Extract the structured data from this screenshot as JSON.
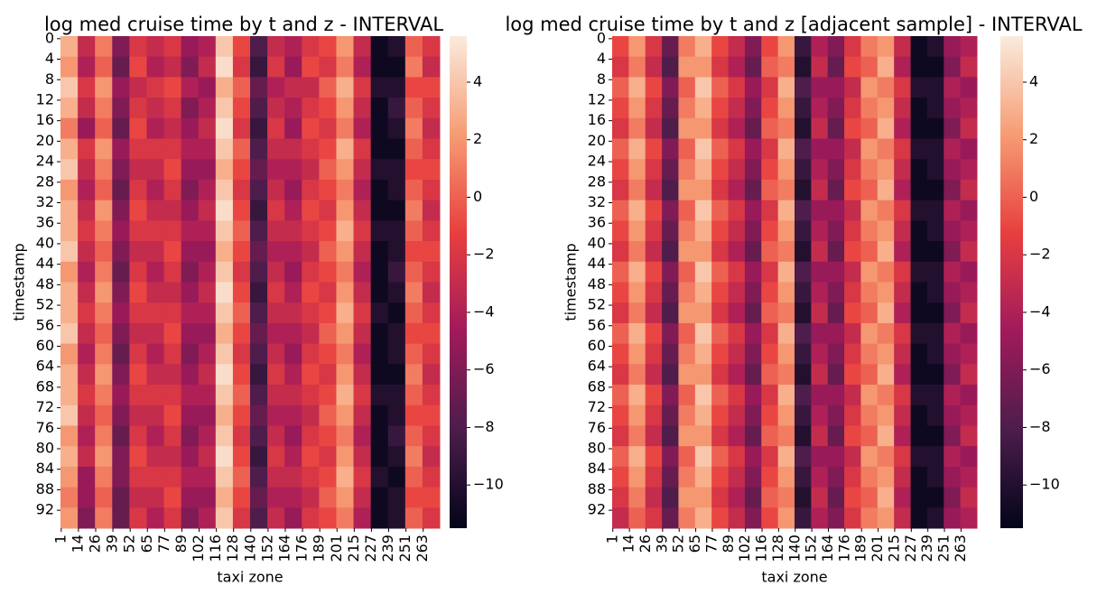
{
  "chart_data": [
    {
      "type": "heatmap",
      "title": "log med cruise time by t and z - INTERVAL",
      "xlabel": "taxi zone",
      "ylabel": "timestamp",
      "x_categories": [
        "1",
        "14",
        "26",
        "39",
        "52",
        "65",
        "77",
        "89",
        "102",
        "116",
        "128",
        "140",
        "152",
        "164",
        "176",
        "189",
        "201",
        "215",
        "227",
        "239",
        "251",
        "263"
      ],
      "y_categories": [
        "0",
        "4",
        "8",
        "12",
        "16",
        "20",
        "24",
        "28",
        "32",
        "36",
        "40",
        "44",
        "48",
        "52",
        "56",
        "60",
        "64",
        "68",
        "72",
        "76",
        "80",
        "84",
        "88",
        "92"
      ],
      "colors": [
        "#03051a",
        "#4c1d4b",
        "#a11a5b",
        "#e83f3f",
        "#f69c73",
        "#faebdd"
      ],
      "clim": [
        -11.5,
        5.6
      ],
      "cticks": [
        {
          "value": 4,
          "label": "4"
        },
        {
          "value": 2,
          "label": "2"
        },
        {
          "value": 0,
          "label": "0"
        },
        {
          "value": -2,
          "label": "−2"
        },
        {
          "value": -4,
          "label": "−4"
        },
        {
          "value": -6,
          "label": "−6"
        },
        {
          "value": -8,
          "label": "−8"
        },
        {
          "value": -10,
          "label": "−10"
        }
      ],
      "values": [
        [
          3,
          -3,
          1,
          -6,
          -2,
          -3,
          -2,
          -5,
          -4,
          4,
          -1,
          -8,
          -3,
          -4,
          -2,
          -1,
          2,
          -3,
          -11,
          -10,
          0,
          -2
        ],
        [
          2,
          -4,
          0,
          -7,
          -1,
          -4,
          -3,
          -6,
          -3,
          5,
          -2,
          -9,
          -2,
          -5,
          -1,
          -2,
          1,
          -4,
          -11,
          -11,
          1,
          -3
        ],
        [
          4,
          -2,
          2,
          -5,
          -3,
          -2,
          -1,
          -4,
          -5,
          3,
          0,
          -7,
          -4,
          -3,
          -3,
          0,
          3,
          -2,
          -10,
          -10,
          -1,
          -1
        ],
        [
          3,
          -3,
          1,
          -6,
          -2,
          -3,
          -2,
          -6,
          -4,
          4,
          -1,
          -8,
          -3,
          -4,
          -2,
          -1,
          2,
          -3,
          -11,
          -9,
          0,
          -2
        ],
        [
          1,
          -5,
          0,
          -7,
          -1,
          -4,
          -3,
          -5,
          -3,
          5,
          -2,
          -9,
          -2,
          -5,
          -1,
          -2,
          1,
          -4,
          -11,
          -10,
          1,
          -3
        ],
        [
          3,
          -2,
          2,
          -5,
          -2,
          -2,
          -2,
          -4,
          -4,
          4,
          0,
          -8,
          -3,
          -3,
          -2,
          -1,
          3,
          -2,
          -11,
          -11,
          0,
          -2
        ],
        [
          4,
          -3,
          1,
          -6,
          -3,
          -3,
          -1,
          -5,
          -5,
          3,
          -1,
          -7,
          -4,
          -4,
          -3,
          0,
          2,
          -3,
          -10,
          -10,
          -1,
          -1
        ],
        [
          2,
          -4,
          0,
          -7,
          -2,
          -4,
          -2,
          -6,
          -4,
          4,
          -2,
          -8,
          -3,
          -5,
          -2,
          -1,
          1,
          -4,
          -11,
          -10,
          0,
          -2
        ],
        [
          3,
          -3,
          2,
          -6,
          -1,
          -3,
          -3,
          -5,
          -3,
          5,
          -1,
          -9,
          -2,
          -4,
          -1,
          -2,
          2,
          -3,
          -11,
          -11,
          1,
          -3
        ],
        [
          3,
          -2,
          1,
          -5,
          -2,
          -2,
          -2,
          -4,
          -4,
          4,
          0,
          -8,
          -3,
          -3,
          -2,
          -1,
          3,
          -2,
          -10,
          -10,
          0,
          -2
        ],
        [
          4,
          -3,
          0,
          -6,
          -3,
          -3,
          -1,
          -5,
          -5,
          3,
          -1,
          -7,
          -4,
          -4,
          -3,
          0,
          2,
          -3,
          -11,
          -10,
          -1,
          -1
        ],
        [
          2,
          -4,
          1,
          -7,
          -2,
          -4,
          -2,
          -6,
          -4,
          4,
          -2,
          -8,
          -3,
          -5,
          -2,
          -1,
          1,
          -4,
          -11,
          -9,
          0,
          -2
        ],
        [
          3,
          -3,
          2,
          -6,
          -1,
          -3,
          -3,
          -5,
          -3,
          5,
          -1,
          -9,
          -2,
          -4,
          -1,
          -2,
          2,
          -3,
          -11,
          -10,
          1,
          -3
        ],
        [
          3,
          -2,
          1,
          -5,
          -2,
          -2,
          -2,
          -4,
          -4,
          4,
          0,
          -8,
          -3,
          -3,
          -2,
          -1,
          3,
          -2,
          -10,
          -11,
          0,
          -2
        ],
        [
          4,
          -3,
          0,
          -6,
          -3,
          -3,
          -1,
          -5,
          -5,
          3,
          -1,
          -7,
          -4,
          -4,
          -3,
          0,
          2,
          -3,
          -11,
          -10,
          -1,
          -1
        ],
        [
          2,
          -4,
          1,
          -7,
          -2,
          -4,
          -2,
          -6,
          -4,
          4,
          -2,
          -8,
          -3,
          -5,
          -2,
          -1,
          1,
          -4,
          -11,
          -10,
          0,
          -2
        ],
        [
          3,
          -3,
          2,
          -6,
          -1,
          -3,
          -3,
          -5,
          -3,
          5,
          -1,
          -9,
          -2,
          -4,
          -1,
          -2,
          2,
          -3,
          -11,
          -11,
          1,
          -3
        ],
        [
          3,
          -2,
          1,
          -5,
          -2,
          -2,
          -2,
          -4,
          -4,
          4,
          0,
          -8,
          -3,
          -3,
          -2,
          -1,
          3,
          -2,
          -10,
          -10,
          0,
          -2
        ],
        [
          4,
          -3,
          0,
          -6,
          -3,
          -3,
          -1,
          -5,
          -5,
          3,
          -1,
          -7,
          -4,
          -4,
          -3,
          0,
          2,
          -3,
          -11,
          -10,
          -1,
          -1
        ],
        [
          2,
          -4,
          1,
          -7,
          -2,
          -4,
          -2,
          -6,
          -4,
          4,
          -2,
          -8,
          -3,
          -5,
          -2,
          -1,
          1,
          -4,
          -11,
          -9,
          0,
          -2
        ],
        [
          3,
          -3,
          2,
          -6,
          -1,
          -3,
          -3,
          -5,
          -3,
          5,
          -1,
          -9,
          -2,
          -4,
          -1,
          -2,
          2,
          -3,
          -11,
          -10,
          1,
          -3
        ],
        [
          2,
          -5,
          1,
          -6,
          -2,
          -2,
          -2,
          -4,
          -4,
          4,
          0,
          -8,
          -3,
          -3,
          -2,
          -1,
          3,
          -2,
          -10,
          -11,
          0,
          -2
        ],
        [
          1,
          -5,
          0,
          -7,
          -3,
          -3,
          -1,
          -5,
          -5,
          3,
          -1,
          -7,
          -4,
          -4,
          -3,
          0,
          2,
          -3,
          -11,
          -10,
          -1,
          -1
        ],
        [
          2,
          -6,
          1,
          -7,
          -2,
          -4,
          -2,
          -6,
          -4,
          4,
          -2,
          -8,
          -3,
          -5,
          -2,
          -1,
          1,
          -4,
          -11,
          -10,
          0,
          -2
        ]
      ]
    },
    {
      "type": "heatmap",
      "title": "log med cruise time by t and z [adjacent sample] - INTERVAL",
      "xlabel": "taxi zone",
      "ylabel": "timestamp",
      "x_categories": [
        "1",
        "14",
        "26",
        "39",
        "52",
        "65",
        "77",
        "89",
        "102",
        "116",
        "128",
        "140",
        "152",
        "164",
        "176",
        "189",
        "201",
        "215",
        "227",
        "239",
        "251",
        "263"
      ],
      "y_categories": [
        "0",
        "4",
        "8",
        "12",
        "16",
        "20",
        "24",
        "28",
        "32",
        "36",
        "40",
        "44",
        "48",
        "52",
        "56",
        "60",
        "64",
        "68",
        "72",
        "76",
        "80",
        "84",
        "88",
        "92"
      ],
      "colors": [
        "#03051a",
        "#4c1d4b",
        "#a11a5b",
        "#e83f3f",
        "#f69c73",
        "#faebdd"
      ],
      "clim": [
        -11.5,
        5.6
      ],
      "cticks": [
        {
          "value": 4,
          "label": "4"
        },
        {
          "value": 2,
          "label": "2"
        },
        {
          "value": 0,
          "label": "0"
        },
        {
          "value": -2,
          "label": "−2"
        },
        {
          "value": -4,
          "label": "−4"
        },
        {
          "value": -6,
          "label": "−6"
        },
        {
          "value": -8,
          "label": "−8"
        },
        {
          "value": -10,
          "label": "−10"
        }
      ],
      "values": [
        [
          -1,
          2,
          -2,
          -7,
          1,
          3,
          -1,
          -3,
          -6,
          -1,
          2,
          -9,
          -4,
          -6,
          -2,
          1,
          2,
          -3,
          -11,
          -10,
          -5,
          -4
        ],
        [
          -2,
          1,
          -3,
          -8,
          2,
          2,
          -2,
          -4,
          -7,
          0,
          1,
          -10,
          -3,
          -7,
          -1,
          0,
          3,
          -4,
          -11,
          -11,
          -6,
          -3
        ],
        [
          0,
          3,
          -1,
          -6,
          0,
          4,
          0,
          -2,
          -5,
          -2,
          3,
          -8,
          -5,
          -5,
          -3,
          2,
          1,
          -2,
          -10,
          -10,
          -4,
          -5
        ],
        [
          -1,
          2,
          -2,
          -7,
          1,
          3,
          -1,
          -3,
          -6,
          -1,
          2,
          -9,
          -4,
          -6,
          -2,
          1,
          2,
          -3,
          -11,
          -10,
          -5,
          -4
        ],
        [
          -2,
          1,
          -3,
          -8,
          2,
          2,
          -2,
          -4,
          -7,
          0,
          1,
          -10,
          -3,
          -7,
          -1,
          0,
          3,
          -4,
          -11,
          -11,
          -6,
          -3
        ],
        [
          0,
          3,
          -1,
          -6,
          0,
          4,
          0,
          -2,
          -5,
          -2,
          3,
          -8,
          -5,
          -5,
          -3,
          2,
          1,
          -2,
          -10,
          -10,
          -4,
          -5
        ],
        [
          -1,
          2,
          -2,
          -7,
          1,
          3,
          -1,
          -3,
          -6,
          -1,
          2,
          -9,
          -4,
          -6,
          -2,
          1,
          2,
          -3,
          -11,
          -10,
          -5,
          -4
        ],
        [
          -2,
          1,
          -3,
          -8,
          2,
          2,
          -2,
          -4,
          -7,
          0,
          1,
          -10,
          -3,
          -7,
          -1,
          0,
          3,
          -4,
          -11,
          -11,
          -6,
          -3
        ],
        [
          0,
          3,
          -1,
          -6,
          0,
          4,
          0,
          -2,
          -5,
          -2,
          3,
          -8,
          -5,
          -5,
          -3,
          2,
          1,
          -2,
          -10,
          -10,
          -4,
          -5
        ],
        [
          -1,
          2,
          -2,
          -7,
          1,
          3,
          -1,
          -3,
          -6,
          -1,
          2,
          -9,
          -4,
          -6,
          -2,
          1,
          2,
          -3,
          -11,
          -10,
          -5,
          -4
        ],
        [
          -2,
          1,
          -3,
          -8,
          2,
          2,
          -2,
          -4,
          -7,
          0,
          1,
          -10,
          -3,
          -7,
          -1,
          0,
          3,
          -4,
          -11,
          -11,
          -6,
          -3
        ],
        [
          0,
          3,
          -1,
          -6,
          0,
          4,
          0,
          -2,
          -5,
          -2,
          3,
          -8,
          -5,
          -5,
          -3,
          2,
          1,
          -2,
          -10,
          -10,
          -4,
          -5
        ],
        [
          -1,
          2,
          -2,
          -7,
          1,
          3,
          -1,
          -3,
          -6,
          -1,
          2,
          -9,
          -4,
          -6,
          -2,
          1,
          2,
          -3,
          -11,
          -10,
          -5,
          -4
        ],
        [
          -2,
          1,
          -3,
          -8,
          2,
          2,
          -2,
          -4,
          -7,
          0,
          1,
          -10,
          -3,
          -7,
          -1,
          0,
          3,
          -4,
          -11,
          -11,
          -6,
          -3
        ],
        [
          0,
          3,
          -1,
          -6,
          0,
          4,
          0,
          -2,
          -5,
          -2,
          3,
          -8,
          -5,
          -5,
          -3,
          2,
          1,
          -2,
          -10,
          -10,
          -4,
          -5
        ],
        [
          -1,
          2,
          -2,
          -7,
          1,
          3,
          -1,
          -3,
          -6,
          -1,
          2,
          -9,
          -4,
          -6,
          -2,
          1,
          2,
          -3,
          -11,
          -10,
          -5,
          -4
        ],
        [
          -2,
          1,
          -3,
          -8,
          2,
          2,
          -2,
          -4,
          -7,
          0,
          1,
          -10,
          -3,
          -7,
          -1,
          0,
          3,
          -4,
          -11,
          -11,
          -6,
          -3
        ],
        [
          0,
          3,
          -1,
          -6,
          0,
          4,
          0,
          -2,
          -5,
          -2,
          3,
          -8,
          -5,
          -5,
          -3,
          2,
          1,
          -2,
          -10,
          -10,
          -4,
          -5
        ],
        [
          -1,
          2,
          -2,
          -7,
          1,
          3,
          -1,
          -3,
          -6,
          -1,
          2,
          -9,
          -4,
          -6,
          -2,
          1,
          2,
          -3,
          -11,
          -10,
          -5,
          -4
        ],
        [
          -2,
          1,
          -3,
          -8,
          2,
          2,
          -2,
          -4,
          -7,
          0,
          1,
          -10,
          -3,
          -7,
          -1,
          0,
          3,
          -4,
          -11,
          -11,
          -6,
          -3
        ],
        [
          0,
          3,
          -1,
          -6,
          0,
          4,
          0,
          -2,
          -5,
          -2,
          3,
          -8,
          -5,
          -5,
          -3,
          2,
          1,
          -2,
          -10,
          -10,
          -4,
          -5
        ],
        [
          -1,
          2,
          -2,
          -7,
          1,
          3,
          -1,
          -3,
          -6,
          -1,
          2,
          -9,
          -4,
          -6,
          -2,
          1,
          2,
          -3,
          -11,
          -10,
          -5,
          -4
        ],
        [
          -2,
          1,
          -3,
          -8,
          2,
          2,
          -2,
          -4,
          -7,
          0,
          1,
          -10,
          -3,
          -7,
          -1,
          0,
          3,
          -4,
          -11,
          -11,
          -6,
          -3
        ],
        [
          -3,
          0,
          -2,
          -7,
          1,
          3,
          -1,
          -3,
          -6,
          -1,
          2,
          -9,
          -4,
          -6,
          -2,
          1,
          2,
          -3,
          -11,
          -10,
          -5,
          -4
        ]
      ]
    }
  ]
}
